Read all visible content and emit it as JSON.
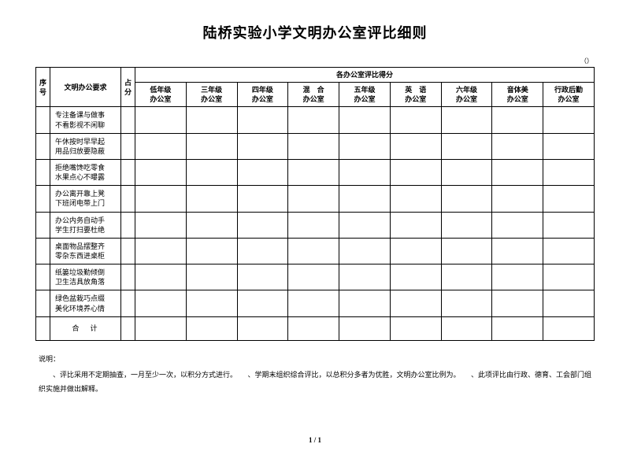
{
  "title": "陆桥实验小学文明办公室评比细则",
  "paren": "（）",
  "headers": {
    "seq": "序号",
    "req": "文明办公要求",
    "pts": "占分",
    "score_group": "各办公室评比得分",
    "offices": [
      "低年级\n办公室",
      "三年级\n办公室",
      "四年级\n办公室",
      "混　合\n办公室",
      "五年级\n办公室",
      "英　语\n办公室",
      "六年级\n办公室",
      "音体美\n办公室",
      "行政后勤\n办公室"
    ]
  },
  "rows": [
    "专注备课与做事\n不看影视不闲聊",
    "午休按时早早起\n用品归放要隐蔽",
    "拒绝嘴馋吃零食\n水果点心不曝露",
    "办公离开靠上凳\n下班闭电带上门",
    "办公内务自动手\n学生打扫要杜绝",
    "桌面物品摆整齐\n零杂东西进桌柜",
    "纸篓垃圾勤倾倒\n卫生洁具放角落",
    "绿色盆栽巧点缀\n美化环境养心情"
  ],
  "total_label": "合计",
  "notes_label": "说明：",
  "notes_body": "、评比采用不定期抽查，一月至少一次，以积分方式进行。　　、学期末组织综合评比，以总积分多者为优胜，文明办公室比例为。　　、此项评比由行政、德育、工会部门组织实施并做出解释。",
  "pagenum": "1 / 1"
}
